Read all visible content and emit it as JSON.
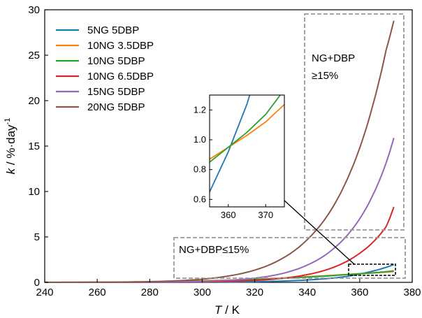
{
  "chart_data": {
    "type": "line",
    "xlabel_var": "T",
    "xlabel_unit": " / K",
    "ylabel_var": "k",
    "ylabel_unit": " / %·day",
    "ylabel_sup": "-1",
    "xlim": [
      240,
      380
    ],
    "ylim": [
      0,
      30
    ],
    "xticks": [
      240,
      260,
      280,
      300,
      320,
      340,
      360,
      380
    ],
    "yticks": [
      0,
      5,
      10,
      15,
      20,
      25,
      30
    ],
    "grid": false,
    "legend_position": "top-left",
    "x": [
      240,
      250,
      260,
      270,
      280,
      290,
      300,
      310,
      320,
      330,
      340,
      350,
      355,
      360,
      365,
      370,
      373
    ],
    "series": [
      {
        "name": "5NG 5DBP",
        "color": "#1f77b4",
        "values": [
          0,
          0,
          0,
          0.001,
          0.003,
          0.007,
          0.016,
          0.035,
          0.072,
          0.14,
          0.26,
          0.48,
          0.65,
          0.92,
          1.24,
          1.65,
          1.95
        ]
      },
      {
        "name": "10NG 3.5DBP",
        "color": "#ff7f0e",
        "values": [
          0.005,
          0.01,
          0.02,
          0.04,
          0.07,
          0.11,
          0.17,
          0.25,
          0.35,
          0.47,
          0.62,
          0.78,
          0.87,
          0.95,
          1.03,
          1.12,
          1.19
        ]
      },
      {
        "name": "10NG 5DBP",
        "color": "#2ca02c",
        "values": [
          0.004,
          0.008,
          0.016,
          0.03,
          0.05,
          0.09,
          0.14,
          0.21,
          0.31,
          0.43,
          0.58,
          0.75,
          0.85,
          0.95,
          1.05,
          1.17,
          1.27
        ]
      },
      {
        "name": "10NG 6.5DBP",
        "color": "#d62728",
        "values": [
          0,
          0,
          0.001,
          0.003,
          0.008,
          0.02,
          0.045,
          0.1,
          0.21,
          0.43,
          0.85,
          1.65,
          2.3,
          3.2,
          4.4,
          6.1,
          8.3
        ]
      },
      {
        "name": "15NG 5DBP",
        "color": "#9467bd",
        "values": [
          0,
          0.001,
          0.003,
          0.008,
          0.02,
          0.045,
          0.1,
          0.22,
          0.46,
          0.94,
          1.9,
          3.7,
          5.1,
          7.0,
          9.6,
          13.1,
          15.9
        ]
      },
      {
        "name": "20NG 5DBP",
        "color": "#8c564b",
        "values": [
          0.002,
          0.006,
          0.015,
          0.035,
          0.08,
          0.17,
          0.35,
          0.7,
          1.35,
          2.55,
          4.7,
          8.4,
          11.2,
          14.8,
          19.5,
          25.5,
          28.8
        ]
      }
    ],
    "annotations": {
      "high_label_1": "NG+DBP",
      "high_label_2": "≥15%",
      "low_label": "NG+DBP≤15%"
    },
    "inset": {
      "xlim": [
        355,
        375
      ],
      "ylim": [
        0.55,
        1.3
      ],
      "xticks": [
        360,
        370
      ],
      "yticks": [
        0.6,
        0.8,
        1.0,
        1.2
      ],
      "ytick_labels": [
        "0.6",
        "0.8",
        "1.0",
        "1.2"
      ],
      "series_shown": [
        "5NG 5DBP",
        "10NG 3.5DBP",
        "10NG 5DBP"
      ]
    }
  }
}
